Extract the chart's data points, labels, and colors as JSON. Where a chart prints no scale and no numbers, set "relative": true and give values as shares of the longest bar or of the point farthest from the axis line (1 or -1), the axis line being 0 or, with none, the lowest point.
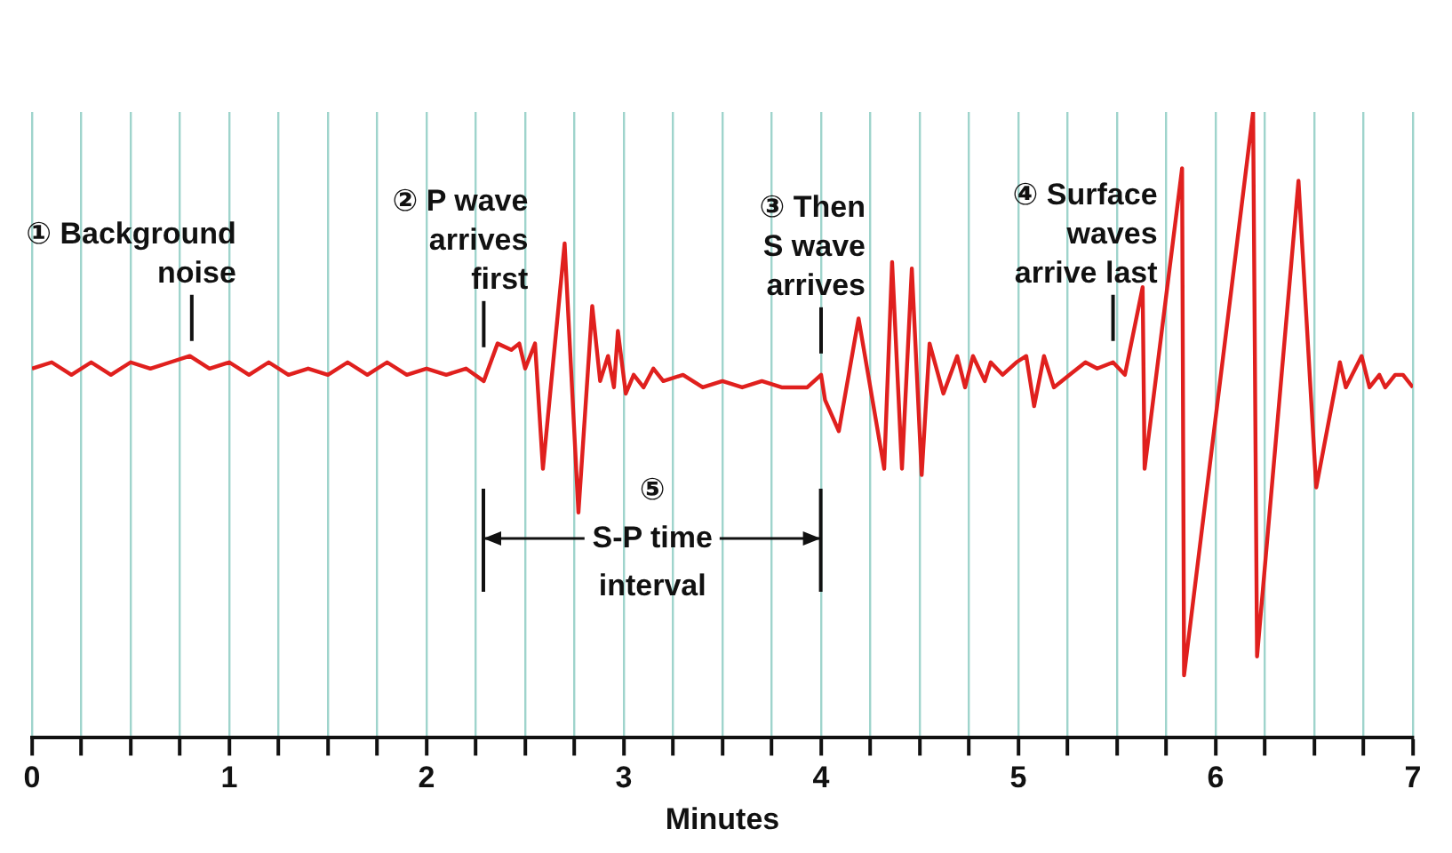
{
  "chart_data": {
    "type": "line",
    "relative": true,
    "xlabel": "Minutes",
    "x": [
      0,
      0.1,
      0.2,
      0.3,
      0.4,
      0.5,
      0.6,
      0.7,
      0.8,
      0.9,
      1.0,
      1.1,
      1.2,
      1.3,
      1.4,
      1.5,
      1.6,
      1.7,
      1.8,
      1.9,
      2.0,
      2.1,
      2.2,
      2.29,
      2.36,
      2.43,
      2.47,
      2.5,
      2.55,
      2.59,
      2.7,
      2.77,
      2.84,
      2.88,
      2.92,
      2.95,
      2.97,
      3.01,
      3.05,
      3.1,
      3.15,
      3.2,
      3.3,
      3.4,
      3.5,
      3.6,
      3.7,
      3.8,
      3.93,
      4.0,
      4.02,
      4.09,
      4.19,
      4.32,
      4.36,
      4.41,
      4.46,
      4.51,
      4.55,
      4.62,
      4.69,
      4.73,
      4.77,
      4.83,
      4.86,
      4.92,
      4.99,
      5.04,
      5.08,
      5.13,
      5.18,
      5.26,
      5.34,
      5.4,
      5.48,
      5.54,
      5.63,
      5.64,
      5.83,
      5.84,
      6.19,
      6.21,
      6.42,
      6.51,
      6.63,
      6.66,
      6.74,
      6.78,
      6.83,
      6.86,
      6.91,
      6.95,
      7.0
    ],
    "values": [
      0.59,
      0.6,
      0.58,
      0.6,
      0.58,
      0.6,
      0.59,
      0.6,
      0.61,
      0.59,
      0.6,
      0.58,
      0.6,
      0.58,
      0.59,
      0.58,
      0.6,
      0.58,
      0.6,
      0.58,
      0.59,
      0.58,
      0.59,
      0.57,
      0.63,
      0.62,
      0.63,
      0.59,
      0.63,
      0.43,
      0.79,
      0.36,
      0.69,
      0.57,
      0.61,
      0.56,
      0.65,
      0.55,
      0.58,
      0.56,
      0.59,
      0.57,
      0.58,
      0.56,
      0.57,
      0.56,
      0.57,
      0.56,
      0.56,
      0.58,
      0.54,
      0.49,
      0.67,
      0.43,
      0.76,
      0.43,
      0.75,
      0.42,
      0.63,
      0.55,
      0.61,
      0.56,
      0.61,
      0.57,
      0.6,
      0.58,
      0.6,
      0.61,
      0.53,
      0.61,
      0.56,
      0.58,
      0.6,
      0.59,
      0.6,
      0.58,
      0.72,
      0.43,
      0.91,
      0.1,
      1.0,
      0.13,
      0.89,
      0.4,
      0.6,
      0.56,
      0.61,
      0.56,
      0.58,
      0.56,
      0.58,
      0.58,
      0.56
    ],
    "color": "#e0201e",
    "marker": "none",
    "line_style": "solid",
    "grid": "x",
    "legend": false,
    "xlim": [
      0,
      7
    ],
    "xticks": [
      0,
      {
        "value": 0.25,
        "label": null
      },
      {
        "value": 0.5,
        "label": null
      },
      {
        "value": 0.75,
        "label": null
      },
      1,
      {
        "value": 1.25,
        "label": null
      },
      {
        "value": 1.5,
        "label": null
      },
      {
        "value": 1.75,
        "label": null
      },
      2,
      {
        "value": 2.25,
        "label": null
      },
      {
        "value": 2.5,
        "label": null
      },
      {
        "value": 2.75,
        "label": null
      },
      3,
      {
        "value": 3.25,
        "label": null
      },
      {
        "value": 3.5,
        "label": null
      },
      {
        "value": 3.75,
        "label": null
      },
      4,
      {
        "value": 4.25,
        "label": null
      },
      {
        "value": 4.5,
        "label": null
      },
      {
        "value": 4.75,
        "label": null
      },
      5,
      {
        "value": 5.25,
        "label": null
      },
      {
        "value": 5.5,
        "label": null
      },
      {
        "value": 5.75,
        "label": null
      },
      6,
      {
        "value": 6.25,
        "label": null
      },
      {
        "value": 6.5,
        "label": null
      },
      {
        "value": 6.75,
        "label": null
      },
      7
    ],
    "annotations": [
      {
        "text": "① Background\nnoise",
        "x": 0.81,
        "y": 0.6
      },
      {
        "text": "② P wave\narrives\nfirst",
        "x": 2.29,
        "y": 0.59
      },
      {
        "text": "③ Then\nS wave\narrives",
        "x": 4.0,
        "y": 0.58
      },
      {
        "text": "④ Surface\nwaves\narrive last",
        "x": 5.48,
        "y": 0.6
      },
      "⑤\nS-P time\ninterval"
    ]
  }
}
